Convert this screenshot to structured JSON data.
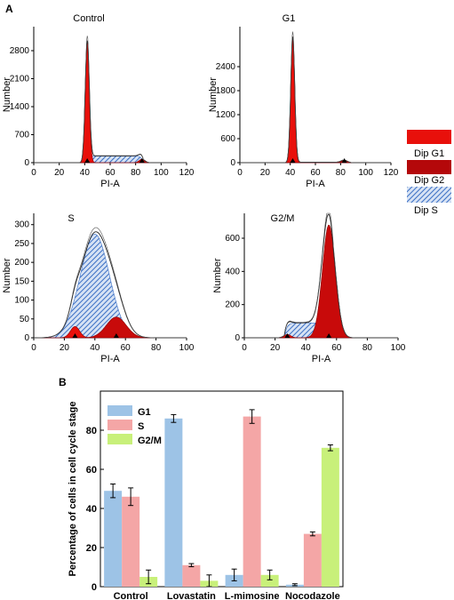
{
  "panel_labels": {
    "a": "A",
    "b": "B"
  },
  "legend_a": {
    "g1": "Dip G1",
    "g2": "Dip G2",
    "s": "Dip S"
  },
  "colors": {
    "red": "#e8100b",
    "red_dark": "#b4080a",
    "hatch_blue": "#3a6fc4",
    "hatch_bg": "#d6e2f4",
    "bar_g1": "#9dc3e6",
    "bar_s": "#f4a6a6",
    "bar_g2m": "#c8f07a"
  },
  "histograms": [
    {
      "title": "Control",
      "xlabel": "PI-A",
      "ylabel": "Number",
      "xticks": [
        "0",
        "20",
        "40",
        "60",
        "80",
        "100",
        "120"
      ],
      "yticks": [
        "0",
        "700",
        "1400",
        "2100",
        "2800"
      ]
    },
    {
      "title": "G1",
      "xlabel": "PI-A",
      "ylabel": "Number",
      "xticks": [
        "0",
        "20",
        "40",
        "60",
        "80",
        "100",
        "120"
      ],
      "yticks": [
        "0",
        "600",
        "1200",
        "1800",
        "2400"
      ]
    },
    {
      "title": "S",
      "xlabel": "PI-A",
      "ylabel": "Number",
      "xticks": [
        "0",
        "20",
        "40",
        "60",
        "80",
        "100"
      ],
      "yticks": [
        "0",
        "50",
        "100",
        "150",
        "200",
        "250",
        "300"
      ]
    },
    {
      "title": "G2/M",
      "xlabel": "PI-A",
      "ylabel": "Number",
      "xticks": [
        "0",
        "20",
        "40",
        "60",
        "80",
        "100"
      ],
      "yticks": [
        "0",
        "200",
        "400",
        "600"
      ]
    }
  ],
  "chart_data": [
    {
      "type": "area",
      "title": "Control",
      "xlabel": "PI-A",
      "ylabel": "Number",
      "xlim": [
        0,
        120
      ],
      "ylim": [
        0,
        3400
      ],
      "g1_peak": {
        "x": 42,
        "y": 3050
      },
      "g2_peak": {
        "x": 85,
        "y": 250
      }
    },
    {
      "type": "area",
      "title": "G1",
      "xlabel": "PI-A",
      "ylabel": "Number",
      "xlim": [
        0,
        120
      ],
      "ylim": [
        0,
        3400
      ],
      "g1_peak": {
        "x": 42,
        "y": 3150
      },
      "g2_peak": {
        "x": 83,
        "y": 60
      }
    },
    {
      "type": "area",
      "title": "S",
      "xlabel": "PI-A",
      "ylabel": "Number",
      "xlim": [
        0,
        100
      ],
      "ylim": [
        0,
        330
      ],
      "g1_peak": {
        "x": 27,
        "y": 30
      },
      "s_peak": {
        "x": 40,
        "y": 275
      },
      "g2_peak": {
        "x": 54,
        "y": 55
      }
    },
    {
      "type": "area",
      "title": "G2/M",
      "xlabel": "PI-A",
      "ylabel": "Number",
      "xlim": [
        0,
        100
      ],
      "ylim": [
        0,
        750
      ],
      "g1_peak": {
        "x": 28,
        "y": 20
      },
      "s_peak": {
        "x": 40,
        "y": 90
      },
      "g2_peak": {
        "x": 55,
        "y": 680
      }
    },
    {
      "type": "bar",
      "ylabel": "Percentage of cells in cell cycle stage",
      "categories": [
        "Control",
        "Lovastatin",
        "L-mimosine",
        "Nocodazole"
      ],
      "ylim": [
        0,
        100
      ],
      "yticks": [
        "0",
        "20",
        "40",
        "60",
        "80"
      ],
      "series": [
        {
          "name": "G1",
          "values": [
            49,
            86,
            6,
            1
          ],
          "errors": [
            3.5,
            2,
            3,
            0.5
          ]
        },
        {
          "name": "S",
          "values": [
            46,
            11,
            87,
            27
          ],
          "errors": [
            4.5,
            0.8,
            3.5,
            1
          ]
        },
        {
          "name": "G2/M",
          "values": [
            5,
            3,
            6,
            71
          ],
          "errors": [
            3.5,
            3,
            2.5,
            1.5
          ]
        }
      ]
    }
  ]
}
